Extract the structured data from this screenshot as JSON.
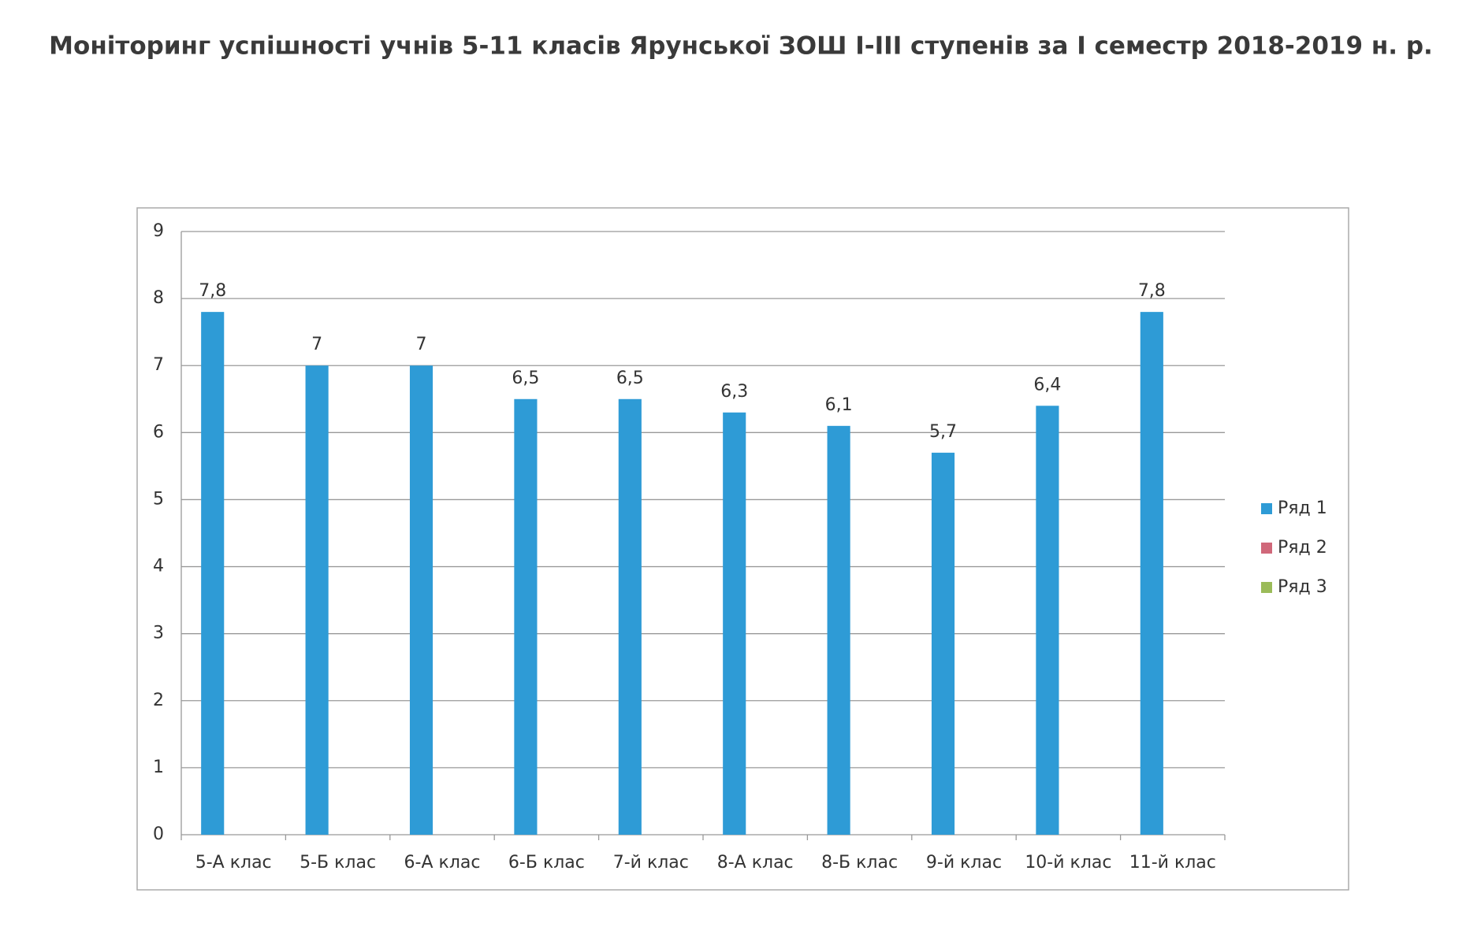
{
  "chart_data": {
    "type": "bar",
    "title": "Моніторинг успішності учнів 5-11 класів Ярунської ЗОШ І-ІІІ ступенів за І семестр 2018-2019 н. р.",
    "categories": [
      "5-А клас",
      "5-Б клас",
      "6-А клас",
      "6-Б клас",
      "7-й клас",
      "8-А клас",
      "8-Б клас",
      "9-й клас",
      "10-й клас",
      "11-й клас"
    ],
    "series": [
      {
        "name": "Ряд 1",
        "color": "#2e9bd6",
        "values": [
          7.8,
          7,
          7,
          6.5,
          6.5,
          6.3,
          6.1,
          5.7,
          6.4,
          7.8
        ],
        "value_labels": [
          "7,8",
          "7",
          "7",
          "6,5",
          "6,5",
          "6,3",
          "6,1",
          "5,7",
          "6,4",
          "7,8"
        ]
      },
      {
        "name": "Ряд 2",
        "color": "#d0687a",
        "values": [
          null,
          null,
          null,
          null,
          null,
          null,
          null,
          null,
          null,
          null
        ]
      },
      {
        "name": "Ряд 3",
        "color": "#9bbb59",
        "values": [
          null,
          null,
          null,
          null,
          null,
          null,
          null,
          null,
          null,
          null
        ]
      }
    ],
    "ylim": [
      0,
      9
    ],
    "yticks": [
      0,
      1,
      2,
      3,
      4,
      5,
      6,
      7,
      8,
      9
    ],
    "grid": true,
    "legend": "right"
  }
}
